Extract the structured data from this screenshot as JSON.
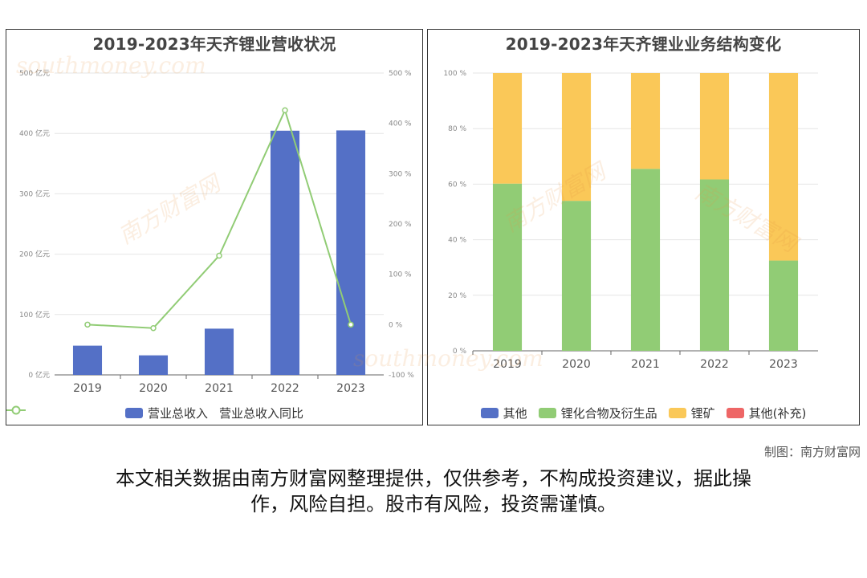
{
  "charts_page": {
    "credit": "制图：南方财富网",
    "disclaimer_line1": "本文相关数据由南方财富网整理提供，仅供参考，不构成投资建议，据此操",
    "disclaimer_line2": "作，风险自担。股市有风险，投资需谨慎。",
    "watermark_cn": "南方财富网",
    "watermark_en": "southmoney.com"
  },
  "chart_data": [
    {
      "type": "bar",
      "title": "2019-2023年天齐锂业营收状况",
      "categories": [
        "2019",
        "2020",
        "2021",
        "2022",
        "2023"
      ],
      "series": [
        {
          "name": "营业总收入",
          "type": "bar",
          "axis": "left",
          "values": [
            48.4,
            32.4,
            76.6,
            404.5,
            405.0
          ],
          "color": "#5470c6"
        },
        {
          "name": "营业总收入同比",
          "type": "line",
          "axis": "right",
          "values": [
            0.0,
            -7.0,
            137.0,
            426.0,
            0.0
          ],
          "color": "#91cc75"
        }
      ],
      "y_left": {
        "ticks": [
          "0 亿元",
          "100 亿元",
          "200 亿元",
          "300 亿元",
          "400 亿元",
          "500 亿元"
        ],
        "min": 0,
        "max": 500
      },
      "y_right": {
        "ticks": [
          "-100 %",
          "0 %",
          "100 %",
          "200 %",
          "300 %",
          "400 %",
          "500 %"
        ],
        "min": -100,
        "max": 500
      },
      "grid": true,
      "legend": "bottom"
    },
    {
      "type": "bar",
      "stacked": true,
      "title": "2019-2023年天齐锂业业务结构变化",
      "categories": [
        "2019",
        "2020",
        "2021",
        "2022",
        "2023"
      ],
      "series": [
        {
          "name": "其他",
          "values": [
            0,
            0,
            0,
            0,
            0
          ],
          "color": "#5470c6"
        },
        {
          "name": "锂化合物及衍生品",
          "values": [
            60.2,
            54.0,
            65.5,
            61.7,
            32.5
          ],
          "color": "#91cc75"
        },
        {
          "name": "锂矿",
          "values": [
            39.8,
            46.0,
            34.5,
            38.3,
            67.5
          ],
          "color": "#fac858"
        },
        {
          "name": "其他(补充)",
          "values": [
            0,
            0,
            0,
            0,
            0
          ],
          "color": "#ee6666"
        }
      ],
      "y": {
        "ticks": [
          "0 %",
          "20 %",
          "40 %",
          "60 %",
          "80 %",
          "100 %"
        ],
        "min": 0,
        "max": 100
      },
      "grid": true,
      "legend": "bottom"
    }
  ]
}
